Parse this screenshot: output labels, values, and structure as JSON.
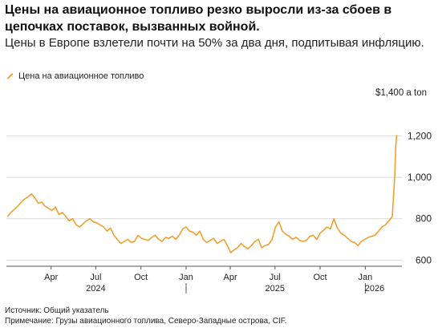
{
  "title": "Цены на авиационное топливо резко выросли из-за сбоев в цепочках поставок, вызванных войной.",
  "subtitle": "Цены в Европе взлетели почти на 50% за два дня, подпитывая инфляцию.",
  "legend_label": "Цена на авиационное топливо",
  "unit_label": "$1,400 a ton",
  "source": "Источник: Общий указатель",
  "note": "Примечание: Грузы авиационного топлива, Северо-Западные острова, CIF.",
  "colors": {
    "series": "#f0a030",
    "grid": "#d9d9d9",
    "axis": "#555555"
  },
  "chart_data": {
    "type": "line",
    "title": "Цены на авиационное топливо резко выросли из-за сбоев в цепочках поставок, вызванных войной.",
    "xlabel": "",
    "ylabel": "",
    "ylim": [
      570,
      1400
    ],
    "yticks": [
      600,
      800,
      1000,
      1200
    ],
    "ytick_labels": [
      "600",
      "800",
      "1,000",
      "1,200"
    ],
    "top_label": "$1,400 a ton",
    "xlim": [
      "2024-01-01",
      "2026-03-10"
    ],
    "month_ticks": [
      {
        "date": "2024-04-01",
        "label": "Apr"
      },
      {
        "date": "2024-07-01",
        "label": "Jul"
      },
      {
        "date": "2024-10-01",
        "label": "Oct"
      },
      {
        "date": "2025-01-01",
        "label": "Jan"
      },
      {
        "date": "2025-04-01",
        "label": "Apr"
      },
      {
        "date": "2025-07-01",
        "label": "Jul"
      },
      {
        "date": "2025-10-01",
        "label": "Oct"
      },
      {
        "date": "2026-01-01",
        "label": "Jan"
      }
    ],
    "year_labels": [
      {
        "date": "2024-07-01",
        "label": "2024"
      },
      {
        "date": "2025-07-01",
        "label": "2025"
      },
      {
        "date": "2026-01-20",
        "label": "2026"
      }
    ],
    "year_separators": [
      "2025-01-01",
      "2026-01-01"
    ],
    "grid": true,
    "series": [
      {
        "name": "Цена на авиационное топливо",
        "x": [
          "2024-01-03",
          "2024-01-10",
          "2024-01-17",
          "2024-01-24",
          "2024-01-31",
          "2024-02-07",
          "2024-02-14",
          "2024-02-21",
          "2024-02-28",
          "2024-03-06",
          "2024-03-13",
          "2024-03-20",
          "2024-03-27",
          "2024-04-03",
          "2024-04-10",
          "2024-04-17",
          "2024-04-24",
          "2024-05-01",
          "2024-05-08",
          "2024-05-15",
          "2024-05-22",
          "2024-05-29",
          "2024-06-05",
          "2024-06-12",
          "2024-06-19",
          "2024-06-26",
          "2024-07-03",
          "2024-07-10",
          "2024-07-17",
          "2024-07-24",
          "2024-07-31",
          "2024-08-07",
          "2024-08-14",
          "2024-08-21",
          "2024-08-28",
          "2024-09-04",
          "2024-09-11",
          "2024-09-18",
          "2024-09-25",
          "2024-10-02",
          "2024-10-09",
          "2024-10-16",
          "2024-10-23",
          "2024-10-30",
          "2024-11-06",
          "2024-11-13",
          "2024-11-20",
          "2024-11-27",
          "2024-12-04",
          "2024-12-11",
          "2024-12-18",
          "2024-12-25",
          "2025-01-01",
          "2025-01-08",
          "2025-01-15",
          "2025-01-22",
          "2025-01-29",
          "2025-02-05",
          "2025-02-12",
          "2025-02-19",
          "2025-02-26",
          "2025-03-05",
          "2025-03-12",
          "2025-03-19",
          "2025-03-26",
          "2025-04-02",
          "2025-04-09",
          "2025-04-16",
          "2025-04-23",
          "2025-04-30",
          "2025-05-07",
          "2025-05-14",
          "2025-05-21",
          "2025-05-28",
          "2025-06-04",
          "2025-06-11",
          "2025-06-18",
          "2025-06-25",
          "2025-07-02",
          "2025-07-09",
          "2025-07-16",
          "2025-07-23",
          "2025-07-30",
          "2025-08-06",
          "2025-08-13",
          "2025-08-20",
          "2025-08-27",
          "2025-09-03",
          "2025-09-10",
          "2025-09-17",
          "2025-09-24",
          "2025-10-01",
          "2025-10-08",
          "2025-10-15",
          "2025-10-22",
          "2025-10-29",
          "2025-11-05",
          "2025-11-12",
          "2025-11-19",
          "2025-11-26",
          "2025-12-03",
          "2025-12-10",
          "2025-12-17",
          "2025-12-24",
          "2025-12-31",
          "2026-01-07",
          "2026-01-14",
          "2026-01-21",
          "2026-01-28",
          "2026-02-04",
          "2026-02-11",
          "2026-02-18",
          "2026-02-25",
          "2026-03-02",
          "2026-03-04",
          "2026-03-06"
        ],
        "values": [
          810,
          830,
          845,
          860,
          880,
          895,
          905,
          920,
          900,
          875,
          880,
          860,
          850,
          840,
          855,
          820,
          830,
          810,
          790,
          800,
          770,
          760,
          775,
          790,
          800,
          785,
          780,
          770,
          760,
          740,
          755,
          720,
          700,
          680,
          690,
          700,
          685,
          690,
          720,
          705,
          700,
          695,
          710,
          720,
          700,
          690,
          710,
          705,
          715,
          700,
          720,
          750,
          760,
          740,
          735,
          720,
          740,
          700,
          685,
          695,
          705,
          680,
          690,
          700,
          670,
          635,
          650,
          660,
          680,
          665,
          655,
          670,
          690,
          700,
          660,
          670,
          675,
          700,
          760,
          785,
          740,
          725,
          715,
          700,
          710,
          695,
          690,
          695,
          715,
          720,
          700,
          730,
          745,
          760,
          750,
          800,
          755,
          730,
          720,
          705,
          690,
          685,
          670,
          690,
          700,
          710,
          715,
          720,
          740,
          760,
          770,
          790,
          810,
          1010,
          1150,
          1205
        ]
      }
    ]
  }
}
